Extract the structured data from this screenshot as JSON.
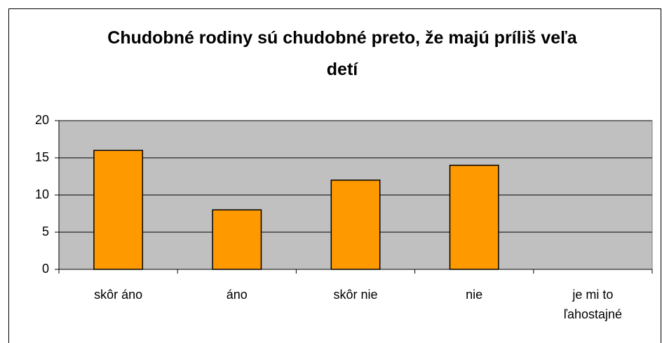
{
  "chart_data": {
    "type": "bar",
    "title": "Chudobné rodiny sú chudobné preto, že majú príliš veľa detí",
    "categories": [
      "skôr áno",
      "áno",
      "skôr nie",
      "nie",
      "je mi to ľahostajné"
    ],
    "values": [
      16,
      8,
      12,
      14,
      0
    ],
    "color": "#ff9900",
    "ylim": [
      0,
      20
    ],
    "yticks": [
      0,
      5,
      10,
      15,
      20
    ],
    "grid": true
  }
}
